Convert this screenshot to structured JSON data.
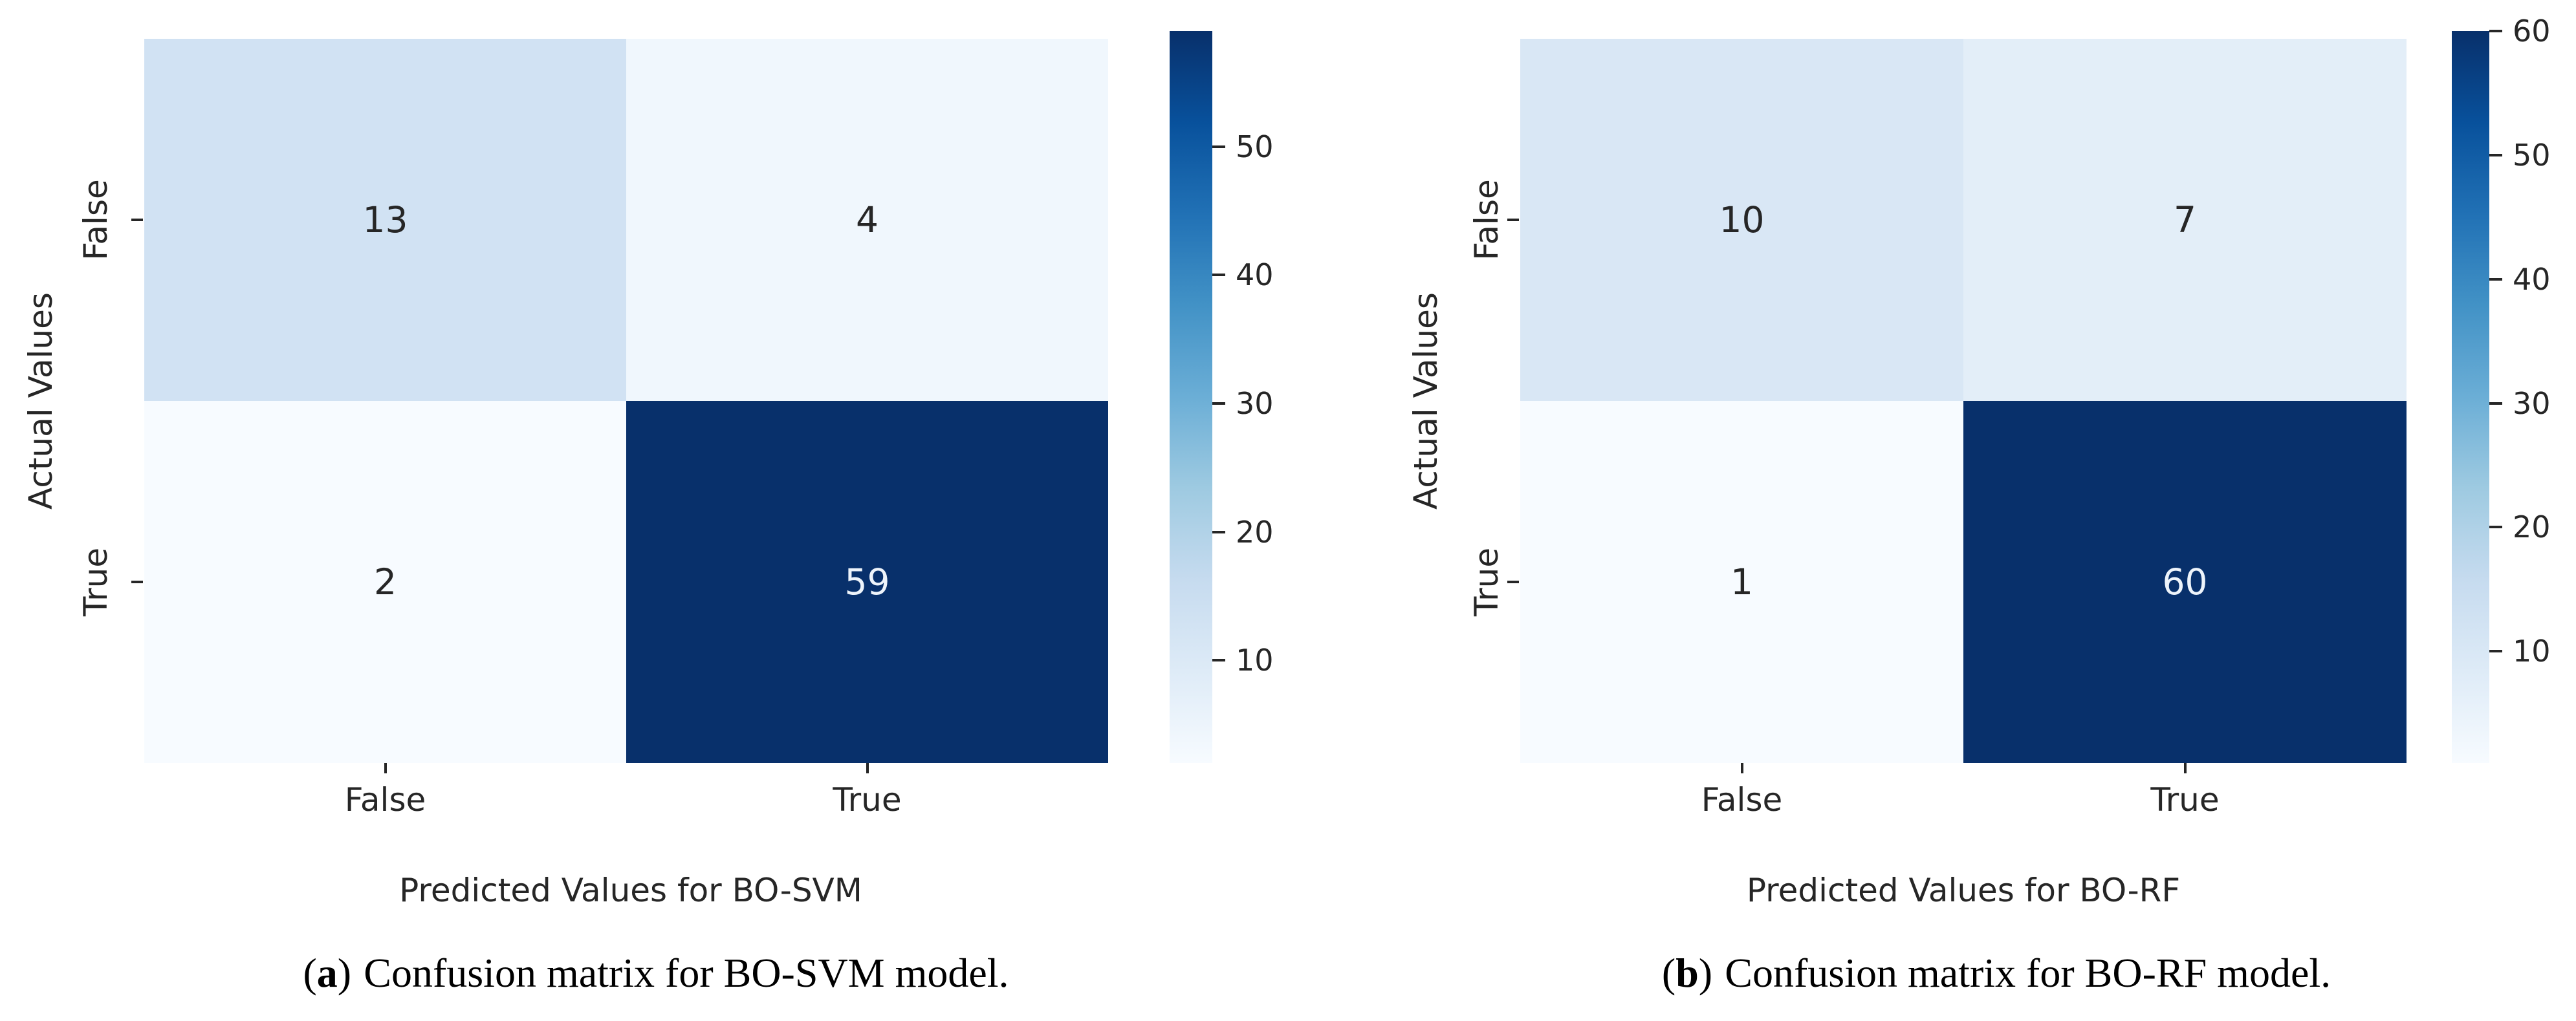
{
  "page": {
    "background": "#ffffff"
  },
  "style": {
    "text_color": "#262626",
    "caption_color": "#000000",
    "annot_dark": "#262626",
    "annot_light": "#eef4fb",
    "colormap_name": "Blues",
    "colormap_stops": [
      "#f7fbff",
      "#deebf7",
      "#c6dbef",
      "#9ecae1",
      "#6baed6",
      "#4292c6",
      "#2171b5",
      "#08519c",
      "#08306b"
    ]
  },
  "chart_data": [
    {
      "type": "heatmap",
      "caption_open": "(",
      "caption_label": "a",
      "caption_close": ")",
      "caption_text": "Confusion matrix for BO-SVM model.",
      "xlabel": "Predicted Values for BO-SVM",
      "ylabel": "Actual Values",
      "x_categories": [
        "False",
        "True"
      ],
      "y_categories": [
        "False",
        "True"
      ],
      "values": [
        [
          13,
          4
        ],
        [
          2,
          59
        ]
      ],
      "vmin": 2,
      "vmax": 59,
      "colorbar_ticks": [
        10,
        20,
        30,
        40,
        50
      ],
      "legend_position": "right-colorbar",
      "grid": false
    },
    {
      "type": "heatmap",
      "caption_open": "(",
      "caption_label": "b",
      "caption_close": ")",
      "caption_text": "Confusion matrix for BO-RF model.",
      "xlabel": "Predicted Values for BO-RF",
      "ylabel": "Actual Values",
      "x_categories": [
        "False",
        "True"
      ],
      "y_categories": [
        "False",
        "True"
      ],
      "values": [
        [
          10,
          7
        ],
        [
          1,
          60
        ]
      ],
      "vmin": 1,
      "vmax": 60,
      "colorbar_ticks": [
        10,
        20,
        30,
        40,
        50,
        60
      ],
      "legend_position": "right-colorbar",
      "grid": false
    }
  ]
}
